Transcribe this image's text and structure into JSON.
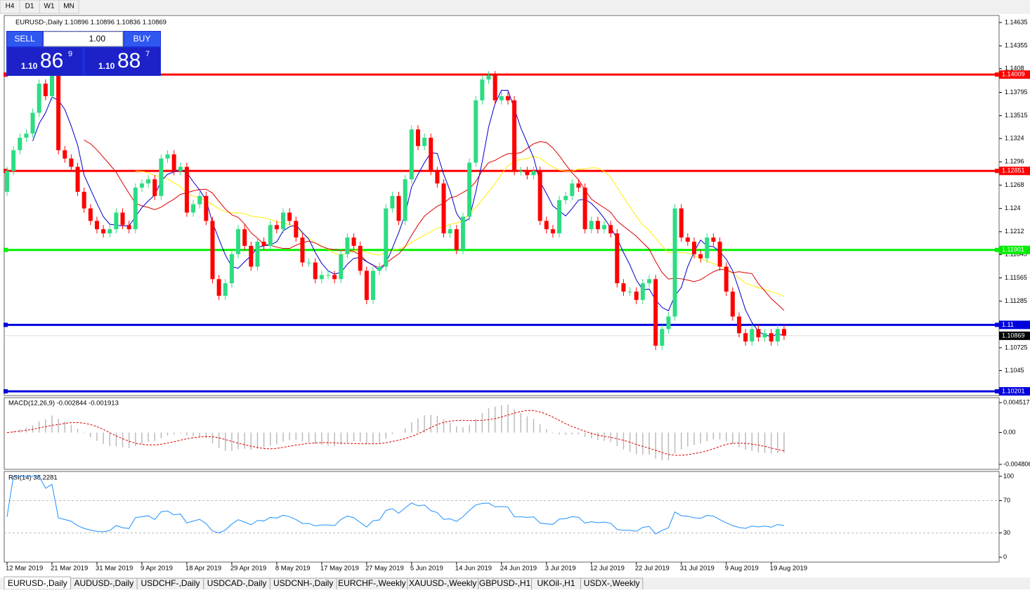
{
  "timeframes": [
    "H4",
    "D1",
    "W1",
    "MN"
  ],
  "trade_panel": {
    "sell": "SELL",
    "buy": "BUY",
    "lot": "1.00",
    "sell_price": {
      "big": "1.10",
      "pips": "86",
      "frac": "9"
    },
    "buy_price": {
      "big": "1.10",
      "pips": "88",
      "frac": "7"
    }
  },
  "chart_data": {
    "type": "candlestick",
    "title": "EURUSD-,Daily 1.10896 1.10896 1.10836 1.10869",
    "first_open": 1.126,
    "close": [
      1.1285,
      1.131,
      1.1325,
      1.133,
      1.1355,
      1.139,
      1.1375,
      1.142,
      1.131,
      1.13,
      1.129,
      1.126,
      1.124,
      1.1225,
      1.1215,
      1.121,
      1.1215,
      1.1235,
      1.122,
      1.1215,
      1.1265,
      1.127,
      1.1275,
      1.1255,
      1.13,
      1.1305,
      1.1285,
      1.129,
      1.1235,
      1.1245,
      1.1255,
      1.1225,
      1.1155,
      1.1135,
      1.115,
      1.1185,
      1.1215,
      1.1195,
      1.117,
      1.12,
      1.1195,
      1.122,
      1.1215,
      1.1235,
      1.1225,
      1.1205,
      1.1175,
      1.1175,
      1.1155,
      1.116,
      1.116,
      1.1155,
      1.1185,
      1.1205,
      1.1195,
      1.1165,
      1.113,
      1.1165,
      1.117,
      1.124,
      1.1255,
      1.1225,
      1.1275,
      1.1335,
      1.1315,
      1.1325,
      1.1285,
      1.127,
      1.121,
      1.1215,
      1.119,
      1.123,
      1.1295,
      1.137,
      1.1395,
      1.14,
      1.137,
      1.1375,
      1.137,
      1.1285,
      1.1285,
      1.128,
      1.1285,
      1.1225,
      1.1215,
      1.121,
      1.125,
      1.1255,
      1.127,
      1.1265,
      1.1215,
      1.1225,
      1.1215,
      1.122,
      1.121,
      1.115,
      1.114,
      1.114,
      1.113,
      1.115,
      1.1155,
      1.1075,
      1.1095,
      1.111,
      1.124,
      1.1205,
      1.12,
      1.1185,
      1.118,
      1.1205,
      1.12,
      1.117,
      1.114,
      1.111,
      1.109,
      1.108,
      1.1095,
      1.1085,
      1.109,
      1.108,
      1.1095,
      1.1087
    ],
    "categories": [
      "12 Mar 2019",
      null,
      null,
      null,
      null,
      null,
      null,
      "21 Mar 2019",
      null,
      null,
      null,
      null,
      null,
      null,
      "31 Mar 2019",
      null,
      null,
      null,
      null,
      null,
      null,
      "9 Apr 2019",
      null,
      null,
      null,
      null,
      null,
      null,
      "18 Apr 2019",
      null,
      null,
      null,
      null,
      null,
      null,
      "29 Apr 2019",
      null,
      null,
      null,
      null,
      null,
      null,
      "8 May 2019",
      null,
      null,
      null,
      null,
      null,
      null,
      "17 May 2019",
      null,
      null,
      null,
      null,
      null,
      null,
      "27 May 2019",
      null,
      null,
      null,
      null,
      null,
      null,
      "5 Jun 2019",
      null,
      null,
      null,
      null,
      null,
      null,
      "14 Jun 2019",
      null,
      null,
      null,
      null,
      null,
      null,
      "24 Jun 2019",
      null,
      null,
      null,
      null,
      null,
      null,
      "3 Jul 2019",
      null,
      null,
      null,
      null,
      null,
      null,
      "12 Jul 2019",
      null,
      null,
      null,
      null,
      null,
      null,
      "22 Jul 2019",
      null,
      null,
      null,
      null,
      null,
      null,
      "31 Jul 2019",
      null,
      null,
      null,
      null,
      null,
      null,
      "9 Aug 2019",
      null,
      null,
      null,
      null,
      null,
      null,
      "19 Aug 2019",
      null,
      null
    ],
    "ylim": [
      1.1015,
      1.1472
    ],
    "yticks": [
      1.14635,
      1.14355,
      1.1408,
      1.13795,
      1.13515,
      1.1324,
      1.1296,
      1.1268,
      1.124,
      1.1212,
      1.11845,
      1.11565,
      1.11285,
      1.10725,
      1.1045
    ],
    "hlines": [
      {
        "value": 1.14009,
        "color": "#ff0000"
      },
      {
        "value": 1.12851,
        "color": "#ff0000"
      },
      {
        "value": 1.11901,
        "color": "#00ee00"
      },
      {
        "value": 1.11,
        "color": "#0000dd"
      },
      {
        "value": 1.10201,
        "color": "#0000dd"
      }
    ],
    "current": 1.10869,
    "colors": {
      "up": "#2ddc82",
      "down": "#ff0000",
      "ma_fast": "#0000cc",
      "ma_mid": "#dd0000",
      "ma_slow": "#ffee00"
    },
    "macd": {
      "title": "MACD(12,26,9) -0.002844 -0.001913",
      "ylim": [
        -0.005559,
        0.00527
      ],
      "yticks": [
        0.004517,
        {
          "value": 0,
          "label": "0.00"
        },
        -0.004806
      ]
    },
    "rsi": {
      "title": "RSI(14) 38.2281",
      "ylim": [
        -6,
        106
      ],
      "yticks": [
        100,
        70,
        30,
        0
      ],
      "levels": [
        70,
        30
      ]
    }
  },
  "tabs": [
    "EURUSD-,Daily",
    "AUDUSD-,Daily",
    "USDCHF-,Daily",
    "USDCAD-,Daily",
    "USDCNH-,Daily",
    "EURCHF-,Weekly",
    "XAUUSD-,Weekly",
    "GBPUSD-,H1",
    "UKOil-,H1",
    "USDX-,Weekly"
  ]
}
